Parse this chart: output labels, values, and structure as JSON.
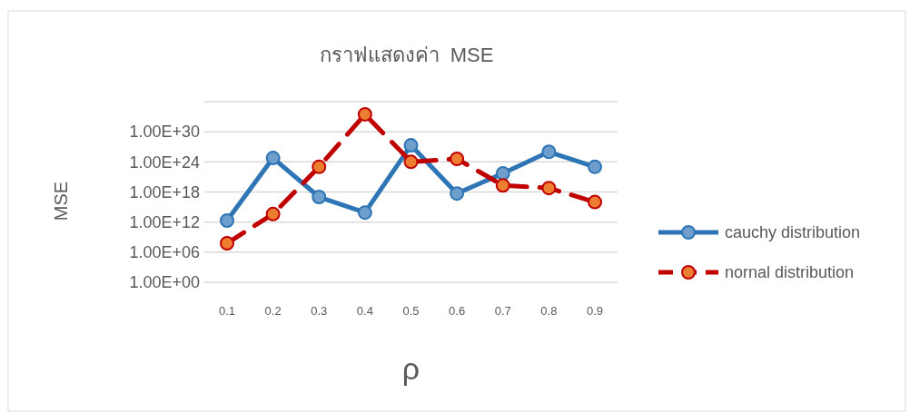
{
  "chart_data": {
    "type": "line",
    "title": "กราฟแสดงค่า  MSE",
    "xlabel": "ρ",
    "ylabel": "MSE",
    "categories": [
      "0.1",
      "0.2",
      "0.3",
      "0.4",
      "0.5",
      "0.6",
      "0.7",
      "0.8",
      "0.9"
    ],
    "series": [
      {
        "name": "cauchy distribution",
        "color": "#2e75b6",
        "line_style": "solid",
        "values": [
          2000000000000.0,
          6e+24,
          1e+17,
          80000000000000.0,
          2e+27,
          5e+17,
          5e+21,
          1e+26,
          1e+23
        ]
      },
      {
        "name": "nornal distribution",
        "color": "#c00000",
        "line_style": "dashed",
        "values": [
          60000000.0,
          40000000000000.0,
          1e+23,
          3e+33,
          1e+24,
          4e+24,
          2e+19,
          6e+18,
          1e+16
        ]
      }
    ],
    "log": "y",
    "ylim": [
      1,
      1e+36
    ],
    "yticks": [
      {
        "value": 1,
        "label": "1.00E+00"
      },
      {
        "value": 1000000.0,
        "label": "1.00E+06"
      },
      {
        "value": 1000000000000.0,
        "label": "1.00E+12"
      },
      {
        "value": 1e+18,
        "label": "1.00E+18"
      },
      {
        "value": 1e+24,
        "label": "1.00E+24"
      },
      {
        "value": 1e+30,
        "label": "1.00E+30"
      },
      {
        "value": 1e+36,
        "label": null
      }
    ],
    "grid": "y",
    "legend": "right",
    "marker": "circle"
  }
}
